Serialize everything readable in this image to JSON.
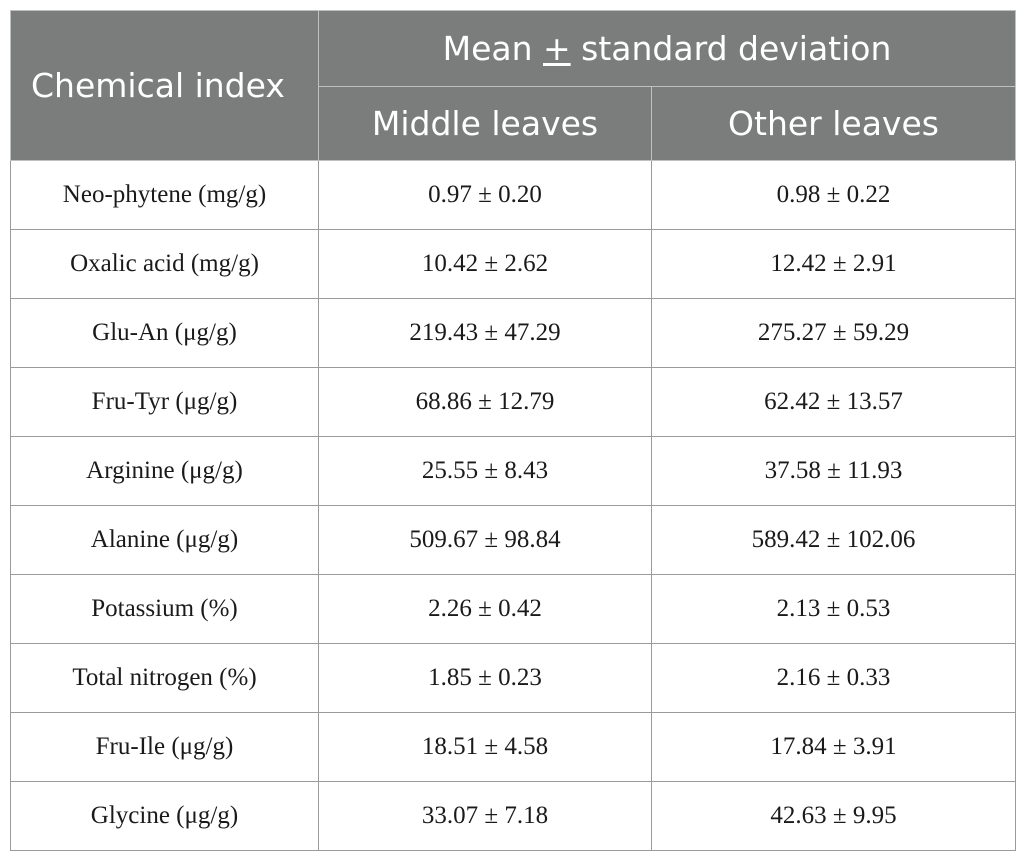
{
  "table": {
    "header": {
      "row_label": "Chemical index",
      "group_label_prefix": "Mean ",
      "group_label_symbol": "+",
      "group_label_suffix": " standard deviation",
      "col1": "Middle leaves",
      "col2": "Other leaves"
    },
    "rows": [
      {
        "index": "Neo-phytene (mg/g)",
        "middle": "0.97 ± 0.20",
        "other": "0.98 ± 0.22"
      },
      {
        "index": "Oxalic acid (mg/g)",
        "middle": "10.42 ± 2.62",
        "other": "12.42 ± 2.91"
      },
      {
        "index": "Glu-An (μg/g)",
        "middle": "219.43 ± 47.29",
        "other": "275.27 ± 59.29"
      },
      {
        "index": "Fru-Tyr (μg/g)",
        "middle": "68.86 ± 12.79",
        "other": "62.42 ± 13.57"
      },
      {
        "index": "Arginine (μg/g)",
        "middle": "25.55 ± 8.43",
        "other": "37.58 ± 11.93"
      },
      {
        "index": "Alanine (μg/g)",
        "middle": "509.67 ± 98.84",
        "other": "589.42 ± 102.06"
      },
      {
        "index": "Potassium (%)",
        "middle": "2.26 ± 0.42",
        "other": "2.13 ± 0.53"
      },
      {
        "index": "Total nitrogen (%)",
        "middle": "1.85 ± 0.23",
        "other": "2.16 ± 0.33"
      },
      {
        "index": "Fru-Ile (μg/g)",
        "middle": "18.51 ± 4.58",
        "other": "17.84 ± 3.91"
      },
      {
        "index": "Glycine (μg/g)",
        "middle": "33.07 ± 7.18",
        "other": "42.63 ± 9.95"
      }
    ]
  }
}
